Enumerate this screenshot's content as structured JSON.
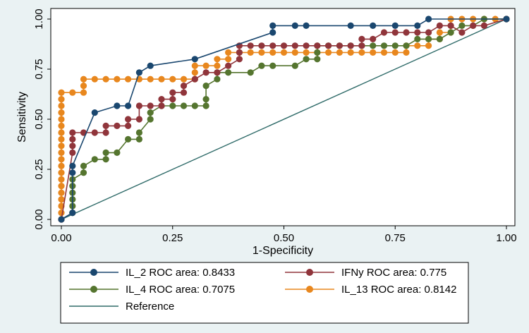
{
  "chart_data": {
    "type": "line",
    "title": "",
    "xlabel": "1-Specificity",
    "ylabel": "Sensitivity",
    "xlim": [
      0,
      1
    ],
    "ylim": [
      0,
      1
    ],
    "xticks": [
      "0.00",
      "0.25",
      "0.50",
      "0.75",
      "1.00"
    ],
    "yticks": [
      "0.00",
      "0.25",
      "0.50",
      "0.75",
      "1.00"
    ],
    "grid": false,
    "legend_position": "bottom",
    "series": [
      {
        "name": "IL_2",
        "legend_label": "IL_2 ROC area: 0.8433",
        "color": "#1a476f",
        "marker": "circle",
        "points": [
          [
            0,
            0
          ],
          [
            0.025,
            0.033
          ],
          [
            0.025,
            0.233
          ],
          [
            0.025,
            0.267
          ],
          [
            0.075,
            0.533
          ],
          [
            0.125,
            0.567
          ],
          [
            0.15,
            0.567
          ],
          [
            0.175,
            0.733
          ],
          [
            0.2,
            0.767
          ],
          [
            0.3,
            0.8
          ],
          [
            0.475,
            0.933
          ],
          [
            0.475,
            0.967
          ],
          [
            0.525,
            0.967
          ],
          [
            0.55,
            0.967
          ],
          [
            0.65,
            0.967
          ],
          [
            0.7,
            0.967
          ],
          [
            0.75,
            0.967
          ],
          [
            0.8,
            0.967
          ],
          [
            0.825,
            1.0
          ],
          [
            1.0,
            1.0
          ]
        ]
      },
      {
        "name": "IFNy",
        "legend_label": "IFNy ROC area: 0.775",
        "color": "#90353b",
        "marker": "circle",
        "points": [
          [
            0,
            0
          ],
          [
            0.025,
            0.333
          ],
          [
            0.025,
            0.367
          ],
          [
            0.025,
            0.4
          ],
          [
            0.025,
            0.433
          ],
          [
            0.05,
            0.433
          ],
          [
            0.075,
            0.433
          ],
          [
            0.1,
            0.433
          ],
          [
            0.1,
            0.467
          ],
          [
            0.125,
            0.467
          ],
          [
            0.15,
            0.467
          ],
          [
            0.15,
            0.5
          ],
          [
            0.175,
            0.5
          ],
          [
            0.175,
            0.567
          ],
          [
            0.2,
            0.567
          ],
          [
            0.225,
            0.567
          ],
          [
            0.225,
            0.6
          ],
          [
            0.25,
            0.6
          ],
          [
            0.25,
            0.633
          ],
          [
            0.275,
            0.633
          ],
          [
            0.275,
            0.667
          ],
          [
            0.3,
            0.7
          ],
          [
            0.325,
            0.733
          ],
          [
            0.35,
            0.733
          ],
          [
            0.375,
            0.767
          ],
          [
            0.4,
            0.8
          ],
          [
            0.4,
            0.833
          ],
          [
            0.4,
            0.867
          ],
          [
            0.425,
            0.867
          ],
          [
            0.45,
            0.867
          ],
          [
            0.475,
            0.867
          ],
          [
            0.5,
            0.867
          ],
          [
            0.525,
            0.867
          ],
          [
            0.55,
            0.867
          ],
          [
            0.575,
            0.867
          ],
          [
            0.6,
            0.867
          ],
          [
            0.625,
            0.867
          ],
          [
            0.65,
            0.867
          ],
          [
            0.675,
            0.867
          ],
          [
            0.675,
            0.9
          ],
          [
            0.7,
            0.9
          ],
          [
            0.725,
            0.933
          ],
          [
            0.75,
            0.933
          ],
          [
            0.775,
            0.933
          ],
          [
            0.8,
            0.933
          ],
          [
            0.825,
            0.933
          ],
          [
            0.85,
            0.967
          ],
          [
            0.875,
            0.967
          ],
          [
            0.9,
            0.933
          ],
          [
            0.925,
            0.967
          ],
          [
            0.95,
            0.967
          ],
          [
            1.0,
            1.0
          ]
        ]
      },
      {
        "name": "IL_4",
        "legend_label": "IL_4 ROC area: 0.7075",
        "color": "#55752f",
        "marker": "circle",
        "points": [
          [
            0.025,
            0.033
          ],
          [
            0.025,
            0.067
          ],
          [
            0.025,
            0.1
          ],
          [
            0.025,
            0.133
          ],
          [
            0.025,
            0.167
          ],
          [
            0.025,
            0.2
          ],
          [
            0.05,
            0.233
          ],
          [
            0.05,
            0.267
          ],
          [
            0.075,
            0.3
          ],
          [
            0.1,
            0.3
          ],
          [
            0.1,
            0.333
          ],
          [
            0.125,
            0.333
          ],
          [
            0.15,
            0.4
          ],
          [
            0.175,
            0.4
          ],
          [
            0.175,
            0.433
          ],
          [
            0.2,
            0.5
          ],
          [
            0.2,
            0.533
          ],
          [
            0.225,
            0.567
          ],
          [
            0.25,
            0.567
          ],
          [
            0.275,
            0.567
          ],
          [
            0.3,
            0.567
          ],
          [
            0.325,
            0.567
          ],
          [
            0.325,
            0.6
          ],
          [
            0.325,
            0.667
          ],
          [
            0.35,
            0.7
          ],
          [
            0.35,
            0.733
          ],
          [
            0.375,
            0.733
          ],
          [
            0.425,
            0.733
          ],
          [
            0.45,
            0.767
          ],
          [
            0.475,
            0.767
          ],
          [
            0.525,
            0.767
          ],
          [
            0.55,
            0.8
          ],
          [
            0.575,
            0.8
          ],
          [
            0.575,
            0.833
          ],
          [
            0.575,
            0.867
          ],
          [
            0.6,
            0.867
          ],
          [
            0.625,
            0.867
          ],
          [
            0.65,
            0.867
          ],
          [
            0.675,
            0.867
          ],
          [
            0.7,
            0.867
          ],
          [
            0.725,
            0.867
          ],
          [
            0.75,
            0.867
          ],
          [
            0.775,
            0.867
          ],
          [
            0.8,
            0.9
          ],
          [
            0.825,
            0.9
          ],
          [
            0.85,
            0.9
          ],
          [
            0.875,
            0.933
          ],
          [
            0.9,
            0.967
          ],
          [
            0.925,
            0.967
          ],
          [
            0.95,
            1.0
          ],
          [
            1.0,
            1.0
          ]
        ]
      },
      {
        "name": "IL_13",
        "legend_label": "IL_13 ROC area: 0.8142",
        "color": "#e8871e",
        "marker": "circle",
        "points": [
          [
            0,
            0
          ],
          [
            0,
            0.033
          ],
          [
            0,
            0.067
          ],
          [
            0,
            0.1
          ],
          [
            0,
            0.133
          ],
          [
            0,
            0.167
          ],
          [
            0,
            0.2
          ],
          [
            0,
            0.233
          ],
          [
            0,
            0.267
          ],
          [
            0,
            0.3
          ],
          [
            0,
            0.333
          ],
          [
            0,
            0.367
          ],
          [
            0,
            0.4
          ],
          [
            0,
            0.433
          ],
          [
            0,
            0.467
          ],
          [
            0,
            0.5
          ],
          [
            0,
            0.533
          ],
          [
            0,
            0.567
          ],
          [
            0,
            0.6
          ],
          [
            0,
            0.633
          ],
          [
            0.025,
            0.633
          ],
          [
            0.05,
            0.633
          ],
          [
            0.05,
            0.667
          ],
          [
            0.05,
            0.7
          ],
          [
            0.075,
            0.7
          ],
          [
            0.1,
            0.7
          ],
          [
            0.125,
            0.7
          ],
          [
            0.15,
            0.7
          ],
          [
            0.175,
            0.7
          ],
          [
            0.2,
            0.7
          ],
          [
            0.225,
            0.7
          ],
          [
            0.25,
            0.7
          ],
          [
            0.275,
            0.7
          ],
          [
            0.3,
            0.7
          ],
          [
            0.3,
            0.733
          ],
          [
            0.3,
            0.767
          ],
          [
            0.325,
            0.767
          ],
          [
            0.35,
            0.767
          ],
          [
            0.35,
            0.8
          ],
          [
            0.375,
            0.8
          ],
          [
            0.375,
            0.833
          ],
          [
            0.4,
            0.833
          ],
          [
            0.425,
            0.833
          ],
          [
            0.45,
            0.833
          ],
          [
            0.475,
            0.833
          ],
          [
            0.5,
            0.833
          ],
          [
            0.525,
            0.833
          ],
          [
            0.55,
            0.833
          ],
          [
            0.575,
            0.833
          ],
          [
            0.6,
            0.833
          ],
          [
            0.625,
            0.833
          ],
          [
            0.65,
            0.833
          ],
          [
            0.675,
            0.833
          ],
          [
            0.7,
            0.833
          ],
          [
            0.725,
            0.833
          ],
          [
            0.75,
            0.833
          ],
          [
            0.775,
            0.833
          ],
          [
            0.775,
            0.867
          ],
          [
            0.8,
            0.867
          ],
          [
            0.825,
            0.867
          ],
          [
            0.825,
            0.9
          ],
          [
            0.85,
            0.9
          ],
          [
            0.85,
            0.933
          ],
          [
            0.875,
            0.933
          ],
          [
            0.875,
            0.967
          ],
          [
            0.875,
            1.0
          ],
          [
            0.9,
            1.0
          ],
          [
            0.925,
            1.0
          ],
          [
            0.95,
            1.0
          ],
          [
            0.975,
            1.0
          ],
          [
            1.0,
            1.0
          ]
        ]
      },
      {
        "name": "Reference",
        "legend_label": "Reference",
        "color": "#2f6b69",
        "marker": "none",
        "points": [
          [
            0,
            0
          ],
          [
            1,
            1
          ]
        ]
      }
    ]
  }
}
